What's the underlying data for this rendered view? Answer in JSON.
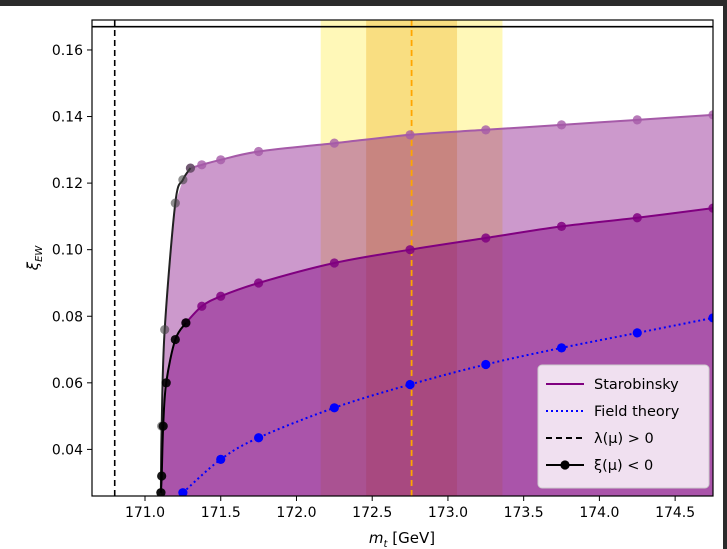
{
  "chart_data": {
    "type": "line",
    "xlabel": "m_t [GeV]",
    "ylabel": "ξ_EW",
    "xlim": [
      170.65,
      174.75
    ],
    "ylim": [
      0.026,
      0.169
    ],
    "xticks": [
      171.0,
      171.5,
      172.0,
      172.5,
      173.0,
      173.5,
      174.0,
      174.5
    ],
    "yticks": [
      0.04,
      0.06,
      0.08,
      0.1,
      0.12,
      0.14,
      0.16
    ],
    "xtick_labels": [
      "171.0",
      "171.5",
      "172.0",
      "172.5",
      "173.0",
      "173.5",
      "174.0",
      "174.5"
    ],
    "ytick_labels": [
      "0.04",
      "0.06",
      "0.08",
      "0.10",
      "0.12",
      "0.14",
      "0.16"
    ],
    "hline_y": 0.167,
    "vline_lambda_x": 170.8,
    "vline_central_x": 172.76,
    "band_outer": [
      172.16,
      173.36
    ],
    "band_inner": [
      172.46,
      173.06
    ],
    "colors": {
      "starobinsky": "#800080",
      "field_theory": "#0000ff",
      "lambda": "#000000",
      "xi": "#000000",
      "central": "#ffa500",
      "band_outer": "#fff59a",
      "band_inner": "#f7d36a"
    },
    "legend": {
      "position": "lower-right",
      "entries": [
        {
          "label": "Starobinsky",
          "style": "solid",
          "color": "#800080"
        },
        {
          "label": "Field theory",
          "style": "dotted",
          "color": "#0000ff"
        },
        {
          "label": "λ(μ) > 0",
          "style": "dashed",
          "color": "#000000"
        },
        {
          "label": "ξ(μ) < 0",
          "style": "solid-marker",
          "color": "#000000"
        }
      ]
    },
    "series": [
      {
        "name": "Starobinsky",
        "style": "solid",
        "x": [
          171.27,
          171.375,
          171.5,
          171.75,
          172.25,
          172.75,
          173.25,
          173.75,
          174.25,
          174.75
        ],
        "y": [
          0.078,
          0.083,
          0.086,
          0.09,
          0.096,
          0.1,
          0.1035,
          0.107,
          0.1096,
          0.1125
        ]
      },
      {
        "name": "Starobinsky upper",
        "style": "solid",
        "x": [
          171.3,
          171.375,
          171.5,
          171.75,
          172.25,
          172.75,
          173.25,
          173.75,
          174.25,
          174.75
        ],
        "y": [
          0.1245,
          0.1255,
          0.127,
          0.1295,
          0.132,
          0.1345,
          0.136,
          0.1375,
          0.139,
          0.1405
        ]
      },
      {
        "name": "Field theory",
        "style": "dotted",
        "x": [
          171.25,
          171.5,
          171.75,
          172.25,
          172.75,
          173.25,
          173.75,
          174.25,
          174.75
        ],
        "y": [
          0.027,
          0.037,
          0.0435,
          0.0525,
          0.0595,
          0.0655,
          0.0705,
          0.075,
          0.0795
        ]
      },
      {
        "name": "ξ(μ) < 0",
        "style": "solid-marker",
        "x": [
          171.105,
          171.11,
          171.12,
          171.14,
          171.2,
          171.27
        ],
        "y": [
          0.027,
          0.032,
          0.047,
          0.06,
          0.073,
          0.078
        ]
      },
      {
        "name": "ξ(μ) < 0 upper",
        "style": "solid-marker",
        "x": [
          171.105,
          171.11,
          171.13,
          171.2,
          171.25,
          171.3
        ],
        "y": [
          0.027,
          0.047,
          0.076,
          0.114,
          0.121,
          0.1245
        ]
      }
    ]
  }
}
